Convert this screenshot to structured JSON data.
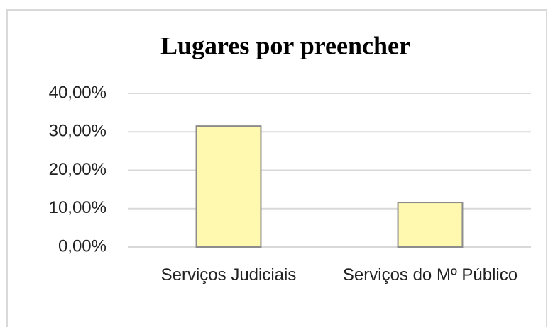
{
  "chart_data": {
    "type": "bar",
    "title": "Lugares por preencher",
    "categories": [
      "Serviços Judiciais",
      "Serviços do Mº Público"
    ],
    "values": [
      31.5,
      11.6
    ],
    "color": "#fff9b0",
    "ylim": [
      0,
      40
    ],
    "yticks": [
      {
        "value": 0,
        "label": "0,00%"
      },
      {
        "value": 10,
        "label": "10,00%"
      },
      {
        "value": 20,
        "label": "20,00%"
      },
      {
        "value": 30,
        "label": "30,00%"
      },
      {
        "value": 40,
        "label": "40,00%"
      }
    ],
    "grid": true
  }
}
